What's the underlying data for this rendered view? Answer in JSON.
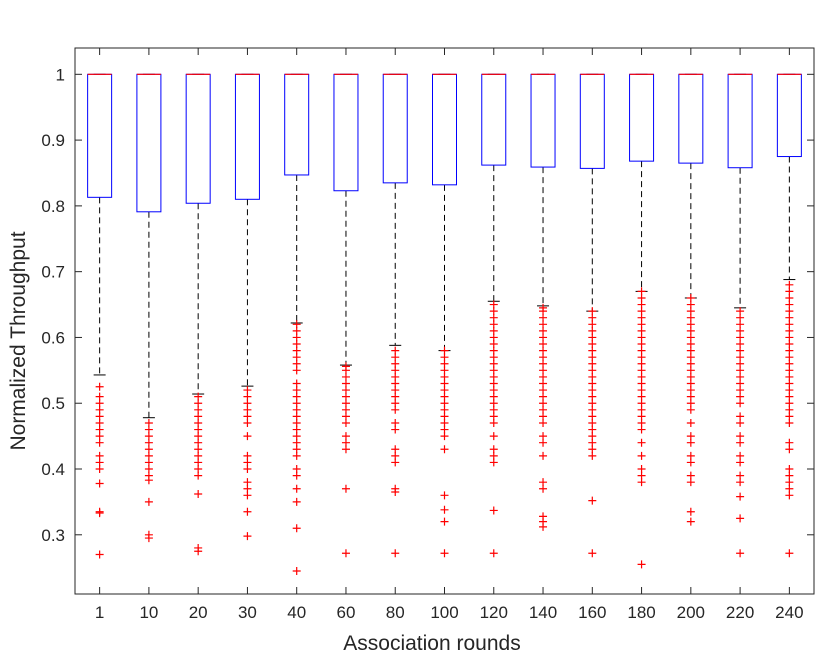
{
  "chart_data": {
    "type": "box",
    "title": "",
    "xlabel": "Association rounds",
    "ylabel": "Normalized Throughput",
    "ylim": [
      0.21,
      1.04
    ],
    "yticks": [
      0.3,
      0.4,
      0.5,
      0.6,
      0.7,
      0.8,
      0.9,
      1
    ],
    "ytick_labels": [
      "0.3",
      "0.4",
      "0.5",
      "0.6",
      "0.7",
      "0.8",
      "0.9",
      "1"
    ],
    "categories": [
      "1",
      "10",
      "20",
      "30",
      "40",
      "60",
      "80",
      "100",
      "120",
      "140",
      "160",
      "180",
      "200",
      "220",
      "240"
    ],
    "colors": {
      "box": "#0000ff",
      "median": "#ff0000",
      "whisker": "#000000",
      "outlier": "#ff0000",
      "axis": "#262626"
    },
    "boxes": [
      {
        "q1": 0.813,
        "median": 1.0,
        "q3": 1.0,
        "whisker_low": 0.543,
        "whisker_high": 1.0,
        "outliers": [
          0.27,
          0.333,
          0.335,
          0.378,
          0.4,
          0.41,
          0.42,
          0.44,
          0.45,
          0.46,
          0.47,
          0.48,
          0.49,
          0.5,
          0.51,
          0.525
        ]
      },
      {
        "q1": 0.791,
        "median": 1.0,
        "q3": 1.0,
        "whisker_low": 0.478,
        "whisker_high": 1.0,
        "outliers": [
          0.295,
          0.3,
          0.35,
          0.383,
          0.39,
          0.4,
          0.41,
          0.42,
          0.43,
          0.44,
          0.45,
          0.46,
          0.47
        ]
      },
      {
        "q1": 0.804,
        "median": 1.0,
        "q3": 1.0,
        "whisker_low": 0.514,
        "whisker_high": 1.0,
        "outliers": [
          0.275,
          0.28,
          0.362,
          0.39,
          0.4,
          0.41,
          0.42,
          0.43,
          0.44,
          0.45,
          0.46,
          0.47,
          0.48,
          0.49,
          0.5,
          0.51
        ]
      },
      {
        "q1": 0.81,
        "median": 1.0,
        "q3": 1.0,
        "whisker_low": 0.526,
        "whisker_high": 1.0,
        "outliers": [
          0.298,
          0.335,
          0.36,
          0.37,
          0.38,
          0.4,
          0.41,
          0.42,
          0.45,
          0.47,
          0.48,
          0.49,
          0.5,
          0.51,
          0.52
        ]
      },
      {
        "q1": 0.847,
        "median": 1.0,
        "q3": 1.0,
        "whisker_low": 0.622,
        "whisker_high": 1.0,
        "outliers": [
          0.245,
          0.31,
          0.35,
          0.37,
          0.39,
          0.4,
          0.42,
          0.43,
          0.44,
          0.45,
          0.46,
          0.47,
          0.48,
          0.49,
          0.5,
          0.51,
          0.52,
          0.53,
          0.55,
          0.56,
          0.57,
          0.58,
          0.59,
          0.6,
          0.61,
          0.62
        ]
      },
      {
        "q1": 0.823,
        "median": 1.0,
        "q3": 1.0,
        "whisker_low": 0.558,
        "whisker_high": 1.0,
        "outliers": [
          0.272,
          0.37,
          0.43,
          0.44,
          0.45,
          0.47,
          0.48,
          0.49,
          0.5,
          0.51,
          0.52,
          0.53,
          0.54,
          0.55,
          0.556
        ]
      },
      {
        "q1": 0.835,
        "median": 1.0,
        "q3": 1.0,
        "whisker_low": 0.588,
        "whisker_high": 1.0,
        "outliers": [
          0.272,
          0.365,
          0.37,
          0.41,
          0.42,
          0.43,
          0.46,
          0.47,
          0.49,
          0.5,
          0.51,
          0.52,
          0.53,
          0.54,
          0.55,
          0.56,
          0.57,
          0.58
        ]
      },
      {
        "q1": 0.832,
        "median": 1.0,
        "q3": 1.0,
        "whisker_low": 0.58,
        "whisker_high": 1.0,
        "outliers": [
          0.272,
          0.32,
          0.338,
          0.36,
          0.43,
          0.45,
          0.46,
          0.47,
          0.48,
          0.49,
          0.5,
          0.51,
          0.52,
          0.53,
          0.54,
          0.55,
          0.56,
          0.57,
          0.58
        ]
      },
      {
        "q1": 0.862,
        "median": 1.0,
        "q3": 1.0,
        "whisker_low": 0.655,
        "whisker_high": 1.0,
        "outliers": [
          0.272,
          0.337,
          0.41,
          0.42,
          0.43,
          0.45,
          0.47,
          0.48,
          0.49,
          0.5,
          0.51,
          0.52,
          0.53,
          0.54,
          0.55,
          0.56,
          0.57,
          0.58,
          0.59,
          0.6,
          0.61,
          0.62,
          0.63,
          0.64,
          0.65
        ]
      },
      {
        "q1": 0.859,
        "median": 1.0,
        "q3": 1.0,
        "whisker_low": 0.648,
        "whisker_high": 1.0,
        "outliers": [
          0.312,
          0.32,
          0.328,
          0.37,
          0.38,
          0.42,
          0.44,
          0.45,
          0.47,
          0.48,
          0.49,
          0.5,
          0.51,
          0.52,
          0.53,
          0.54,
          0.55,
          0.56,
          0.57,
          0.58,
          0.59,
          0.6,
          0.61,
          0.62,
          0.63,
          0.64,
          0.645
        ]
      },
      {
        "q1": 0.857,
        "median": 1.0,
        "q3": 1.0,
        "whisker_low": 0.64,
        "whisker_high": 1.0,
        "outliers": [
          0.272,
          0.352,
          0.42,
          0.43,
          0.44,
          0.45,
          0.46,
          0.47,
          0.48,
          0.49,
          0.5,
          0.51,
          0.52,
          0.53,
          0.54,
          0.55,
          0.56,
          0.57,
          0.58,
          0.59,
          0.6,
          0.61,
          0.62,
          0.63,
          0.64
        ]
      },
      {
        "q1": 0.868,
        "median": 1.0,
        "q3": 1.0,
        "whisker_low": 0.67,
        "whisker_high": 1.0,
        "outliers": [
          0.255,
          0.38,
          0.39,
          0.4,
          0.42,
          0.44,
          0.46,
          0.47,
          0.48,
          0.49,
          0.5,
          0.51,
          0.52,
          0.53,
          0.54,
          0.55,
          0.56,
          0.57,
          0.58,
          0.59,
          0.6,
          0.61,
          0.62,
          0.63,
          0.64,
          0.65,
          0.66,
          0.67
        ]
      },
      {
        "q1": 0.865,
        "median": 1.0,
        "q3": 1.0,
        "whisker_low": 0.66,
        "whisker_high": 1.0,
        "outliers": [
          0.32,
          0.335,
          0.38,
          0.39,
          0.41,
          0.42,
          0.44,
          0.45,
          0.47,
          0.49,
          0.5,
          0.51,
          0.52,
          0.53,
          0.54,
          0.55,
          0.56,
          0.57,
          0.58,
          0.59,
          0.6,
          0.61,
          0.62,
          0.63,
          0.64,
          0.65,
          0.66
        ]
      },
      {
        "q1": 0.858,
        "median": 1.0,
        "q3": 1.0,
        "whisker_low": 0.645,
        "whisker_high": 1.0,
        "outliers": [
          0.272,
          0.325,
          0.358,
          0.38,
          0.39,
          0.41,
          0.42,
          0.44,
          0.45,
          0.47,
          0.48,
          0.5,
          0.51,
          0.52,
          0.53,
          0.54,
          0.55,
          0.56,
          0.57,
          0.58,
          0.59,
          0.6,
          0.61,
          0.62,
          0.63,
          0.64
        ]
      },
      {
        "q1": 0.875,
        "median": 1.0,
        "q3": 1.0,
        "whisker_low": 0.688,
        "whisker_high": 1.0,
        "outliers": [
          0.272,
          0.36,
          0.37,
          0.38,
          0.39,
          0.4,
          0.43,
          0.44,
          0.47,
          0.48,
          0.49,
          0.5,
          0.51,
          0.52,
          0.53,
          0.54,
          0.55,
          0.56,
          0.57,
          0.58,
          0.59,
          0.6,
          0.61,
          0.62,
          0.63,
          0.64,
          0.65,
          0.66,
          0.67,
          0.68
        ]
      }
    ]
  }
}
